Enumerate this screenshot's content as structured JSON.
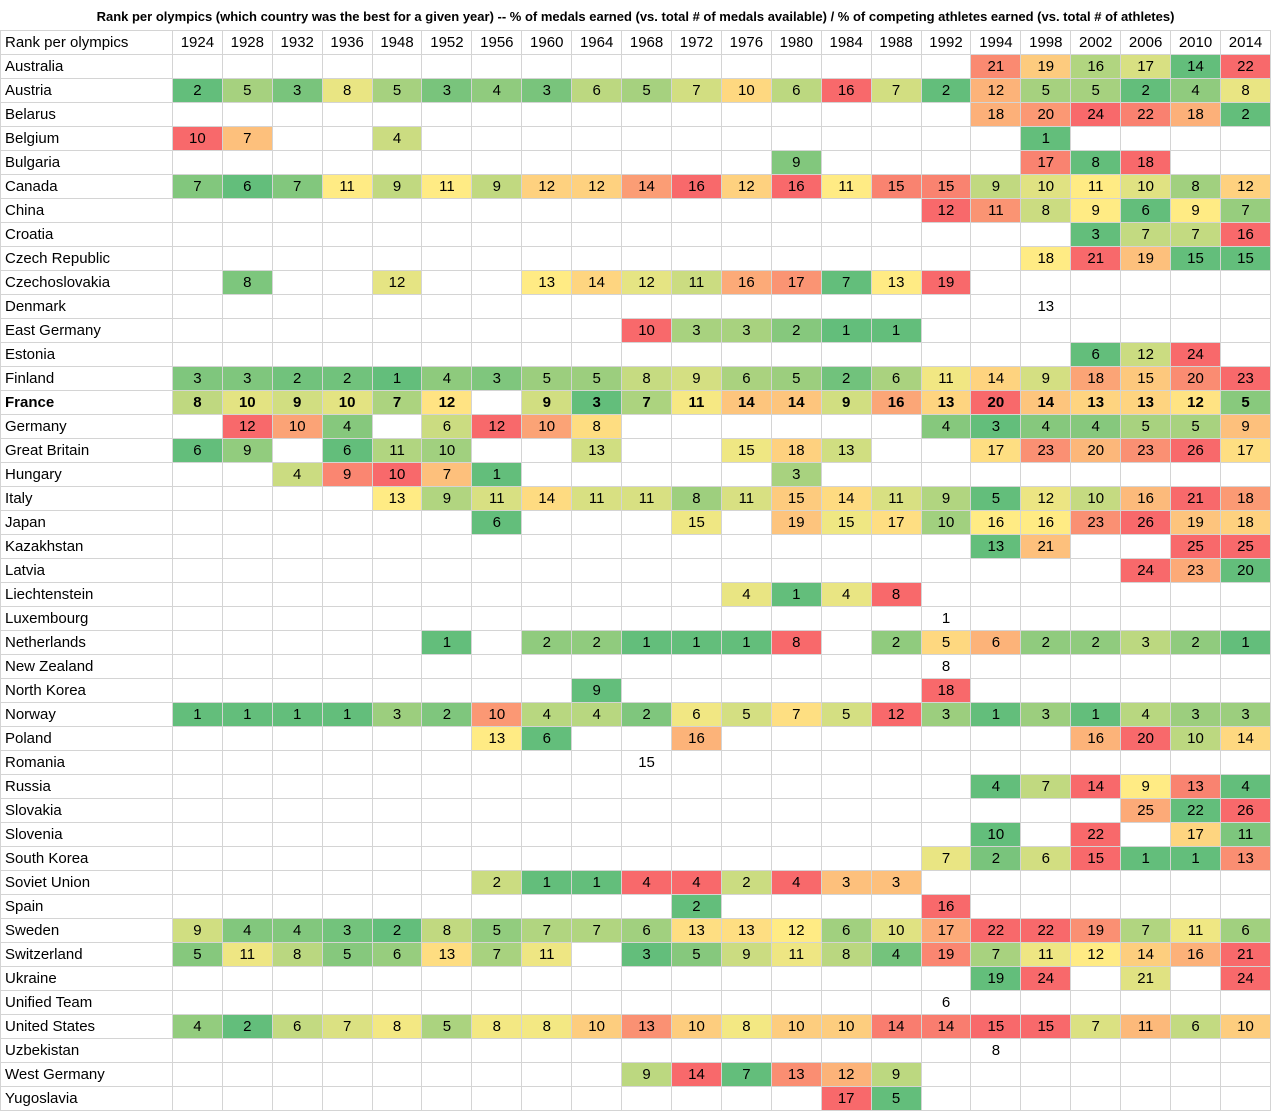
{
  "chart_data": {
    "type": "heatmap",
    "title": "Rank per olympics  (which country was the best for a given year) -- % of medals earned (vs. total # of medals available) / % of competing athletes earned (vs. total # of athletes)",
    "corner_label": "Rank per olympics",
    "bold_row": "France",
    "color_scale": {
      "low": "#63be7b",
      "mid": "#ffeb84",
      "high": "#f8696b"
    },
    "years": [
      "1924",
      "1928",
      "1932",
      "1936",
      "1948",
      "1952",
      "1956",
      "1960",
      "1964",
      "1968",
      "1972",
      "1976",
      "1980",
      "1984",
      "1988",
      "1992",
      "1994",
      "1998",
      "2002",
      "2006",
      "2010",
      "2014"
    ],
    "rows": [
      {
        "country": "Australia",
        "values": [
          null,
          null,
          null,
          null,
          null,
          null,
          null,
          null,
          null,
          null,
          null,
          null,
          null,
          null,
          null,
          null,
          21,
          19,
          16,
          17,
          14,
          22
        ]
      },
      {
        "country": "Austria",
        "values": [
          2,
          5,
          3,
          8,
          5,
          3,
          4,
          3,
          6,
          5,
          7,
          10,
          6,
          16,
          7,
          2,
          12,
          5,
          5,
          2,
          4,
          8
        ]
      },
      {
        "country": "Belarus",
        "values": [
          null,
          null,
          null,
          null,
          null,
          null,
          null,
          null,
          null,
          null,
          null,
          null,
          null,
          null,
          null,
          null,
          18,
          20,
          24,
          22,
          18,
          2
        ]
      },
      {
        "country": "Belgium",
        "values": [
          10,
          7,
          null,
          null,
          4,
          null,
          null,
          null,
          null,
          null,
          null,
          null,
          null,
          null,
          null,
          null,
          null,
          1,
          null,
          null,
          null,
          null
        ]
      },
      {
        "country": "Bulgaria",
        "values": [
          null,
          null,
          null,
          null,
          null,
          null,
          null,
          null,
          null,
          null,
          null,
          null,
          9,
          null,
          null,
          null,
          null,
          17,
          8,
          18,
          null,
          null
        ]
      },
      {
        "country": "Canada",
        "values": [
          7,
          6,
          7,
          11,
          9,
          11,
          9,
          12,
          12,
          14,
          16,
          12,
          16,
          11,
          15,
          15,
          9,
          10,
          11,
          10,
          8,
          12
        ]
      },
      {
        "country": "China",
        "values": [
          null,
          null,
          null,
          null,
          null,
          null,
          null,
          null,
          null,
          null,
          null,
          null,
          null,
          null,
          null,
          12,
          11,
          8,
          9,
          6,
          9,
          7
        ]
      },
      {
        "country": "Croatia",
        "values": [
          null,
          null,
          null,
          null,
          null,
          null,
          null,
          null,
          null,
          null,
          null,
          null,
          null,
          null,
          null,
          null,
          null,
          null,
          3,
          7,
          7,
          16
        ]
      },
      {
        "country": "Czech Republic",
        "values": [
          null,
          null,
          null,
          null,
          null,
          null,
          null,
          null,
          null,
          null,
          null,
          null,
          null,
          null,
          null,
          null,
          null,
          18,
          21,
          19,
          15,
          15
        ]
      },
      {
        "country": "Czechoslovakia",
        "values": [
          null,
          8,
          null,
          null,
          12,
          null,
          null,
          13,
          14,
          12,
          11,
          16,
          17,
          7,
          13,
          19,
          null,
          null,
          null,
          null,
          null,
          null
        ]
      },
      {
        "country": "Denmark",
        "values": [
          null,
          null,
          null,
          null,
          null,
          null,
          null,
          null,
          null,
          null,
          null,
          null,
          null,
          null,
          null,
          null,
          null,
          13,
          null,
          null,
          null,
          null
        ]
      },
      {
        "country": "East Germany",
        "values": [
          null,
          null,
          null,
          null,
          null,
          null,
          null,
          null,
          null,
          10,
          3,
          3,
          2,
          1,
          1,
          null,
          null,
          null,
          null,
          null,
          null,
          null
        ]
      },
      {
        "country": "Estonia",
        "values": [
          null,
          null,
          null,
          null,
          null,
          null,
          null,
          null,
          null,
          null,
          null,
          null,
          null,
          null,
          null,
          null,
          null,
          null,
          6,
          12,
          24,
          null
        ]
      },
      {
        "country": "Finland",
        "values": [
          3,
          3,
          2,
          2,
          1,
          4,
          3,
          5,
          5,
          8,
          9,
          6,
          5,
          2,
          6,
          11,
          14,
          9,
          18,
          15,
          20,
          23
        ]
      },
      {
        "country": "France",
        "values": [
          8,
          10,
          9,
          10,
          7,
          12,
          null,
          9,
          3,
          7,
          11,
          14,
          14,
          9,
          16,
          13,
          20,
          14,
          13,
          13,
          12,
          5
        ]
      },
      {
        "country": "Germany",
        "values": [
          null,
          12,
          10,
          4,
          null,
          6,
          12,
          10,
          8,
          null,
          null,
          null,
          null,
          null,
          null,
          4,
          3,
          4,
          4,
          5,
          5,
          9
        ]
      },
      {
        "country": "Great Britain",
        "values": [
          6,
          9,
          null,
          6,
          11,
          10,
          null,
          null,
          13,
          null,
          null,
          15,
          18,
          13,
          null,
          null,
          17,
          23,
          20,
          23,
          26,
          17
        ]
      },
      {
        "country": "Hungary",
        "values": [
          null,
          null,
          4,
          9,
          10,
          7,
          1,
          null,
          null,
          null,
          null,
          null,
          3,
          null,
          null,
          null,
          null,
          null,
          null,
          null,
          null,
          null
        ]
      },
      {
        "country": "Italy",
        "values": [
          null,
          null,
          null,
          null,
          13,
          9,
          11,
          14,
          11,
          11,
          8,
          11,
          15,
          14,
          11,
          9,
          5,
          12,
          10,
          16,
          21,
          18
        ]
      },
      {
        "country": "Japan",
        "values": [
          null,
          null,
          null,
          null,
          null,
          null,
          6,
          null,
          null,
          null,
          15,
          null,
          19,
          15,
          17,
          10,
          16,
          16,
          23,
          26,
          19,
          18
        ]
      },
      {
        "country": "Kazakhstan",
        "values": [
          null,
          null,
          null,
          null,
          null,
          null,
          null,
          null,
          null,
          null,
          null,
          null,
          null,
          null,
          null,
          null,
          13,
          21,
          null,
          null,
          25,
          25
        ]
      },
      {
        "country": "Latvia",
        "values": [
          null,
          null,
          null,
          null,
          null,
          null,
          null,
          null,
          null,
          null,
          null,
          null,
          null,
          null,
          null,
          null,
          null,
          null,
          null,
          24,
          23,
          20
        ]
      },
      {
        "country": "Liechtenstein",
        "values": [
          null,
          null,
          null,
          null,
          null,
          null,
          null,
          null,
          null,
          null,
          null,
          4,
          1,
          4,
          8,
          null,
          null,
          null,
          null,
          null,
          null,
          null
        ]
      },
      {
        "country": "Luxembourg",
        "values": [
          null,
          null,
          null,
          null,
          null,
          null,
          null,
          null,
          null,
          null,
          null,
          null,
          null,
          null,
          null,
          1,
          null,
          null,
          null,
          null,
          null,
          null
        ]
      },
      {
        "country": "Netherlands",
        "values": [
          null,
          null,
          null,
          null,
          null,
          1,
          null,
          2,
          2,
          1,
          1,
          1,
          8,
          null,
          2,
          5,
          6,
          2,
          2,
          3,
          2,
          1
        ]
      },
      {
        "country": "New Zealand",
        "values": [
          null,
          null,
          null,
          null,
          null,
          null,
          null,
          null,
          null,
          null,
          null,
          null,
          null,
          null,
          null,
          8,
          null,
          null,
          null,
          null,
          null,
          null
        ]
      },
      {
        "country": "North Korea",
        "values": [
          null,
          null,
          null,
          null,
          null,
          null,
          null,
          null,
          9,
          null,
          null,
          null,
          null,
          null,
          null,
          18,
          null,
          null,
          null,
          null,
          null,
          null
        ]
      },
      {
        "country": "Norway",
        "values": [
          1,
          1,
          1,
          1,
          3,
          2,
          10,
          4,
          4,
          2,
          6,
          5,
          7,
          5,
          12,
          3,
          1,
          3,
          1,
          4,
          3,
          3
        ]
      },
      {
        "country": "Poland",
        "values": [
          null,
          null,
          null,
          null,
          null,
          null,
          13,
          6,
          null,
          null,
          16,
          null,
          null,
          null,
          null,
          null,
          null,
          null,
          16,
          20,
          10,
          14
        ]
      },
      {
        "country": "Romania",
        "values": [
          null,
          null,
          null,
          null,
          null,
          null,
          null,
          null,
          null,
          15,
          null,
          null,
          null,
          null,
          null,
          null,
          null,
          null,
          null,
          null,
          null,
          null
        ]
      },
      {
        "country": "Russia",
        "values": [
          null,
          null,
          null,
          null,
          null,
          null,
          null,
          null,
          null,
          null,
          null,
          null,
          null,
          null,
          null,
          null,
          4,
          7,
          14,
          9,
          13,
          4
        ]
      },
      {
        "country": "Slovakia",
        "values": [
          null,
          null,
          null,
          null,
          null,
          null,
          null,
          null,
          null,
          null,
          null,
          null,
          null,
          null,
          null,
          null,
          null,
          null,
          null,
          25,
          22,
          26
        ]
      },
      {
        "country": "Slovenia",
        "values": [
          null,
          null,
          null,
          null,
          null,
          null,
          null,
          null,
          null,
          null,
          null,
          null,
          null,
          null,
          null,
          null,
          10,
          null,
          22,
          null,
          17,
          11
        ]
      },
      {
        "country": "South Korea",
        "values": [
          null,
          null,
          null,
          null,
          null,
          null,
          null,
          null,
          null,
          null,
          null,
          null,
          null,
          null,
          null,
          7,
          2,
          6,
          15,
          1,
          1,
          13
        ]
      },
      {
        "country": "Soviet Union",
        "values": [
          null,
          null,
          null,
          null,
          null,
          null,
          2,
          1,
          1,
          4,
          4,
          2,
          4,
          3,
          3,
          null,
          null,
          null,
          null,
          null,
          null,
          null
        ]
      },
      {
        "country": "Spain",
        "values": [
          null,
          null,
          null,
          null,
          null,
          null,
          null,
          null,
          null,
          null,
          2,
          null,
          null,
          null,
          null,
          16,
          null,
          null,
          null,
          null,
          null,
          null
        ]
      },
      {
        "country": "Sweden",
        "values": [
          9,
          4,
          4,
          3,
          2,
          8,
          5,
          7,
          7,
          6,
          13,
          13,
          12,
          6,
          10,
          17,
          22,
          22,
          19,
          7,
          11,
          6
        ]
      },
      {
        "country": "Switzerland",
        "values": [
          5,
          11,
          8,
          5,
          6,
          13,
          7,
          11,
          null,
          3,
          5,
          9,
          11,
          8,
          4,
          19,
          7,
          11,
          12,
          14,
          16,
          21
        ]
      },
      {
        "country": "Ukraine",
        "values": [
          null,
          null,
          null,
          null,
          null,
          null,
          null,
          null,
          null,
          null,
          null,
          null,
          null,
          null,
          null,
          null,
          19,
          24,
          null,
          21,
          null,
          24
        ]
      },
      {
        "country": "Unified Team",
        "values": [
          null,
          null,
          null,
          null,
          null,
          null,
          null,
          null,
          null,
          null,
          null,
          null,
          null,
          null,
          null,
          6,
          null,
          null,
          null,
          null,
          null,
          null
        ]
      },
      {
        "country": "United States",
        "values": [
          4,
          2,
          6,
          7,
          8,
          5,
          8,
          8,
          10,
          13,
          10,
          8,
          10,
          10,
          14,
          14,
          15,
          15,
          7,
          11,
          6,
          10
        ]
      },
      {
        "country": "Uzbekistan",
        "values": [
          null,
          null,
          null,
          null,
          null,
          null,
          null,
          null,
          null,
          null,
          null,
          null,
          null,
          null,
          null,
          null,
          8,
          null,
          null,
          null,
          null,
          null
        ]
      },
      {
        "country": "West Germany",
        "values": [
          null,
          null,
          null,
          null,
          null,
          null,
          null,
          null,
          null,
          9,
          14,
          7,
          13,
          12,
          9,
          null,
          null,
          null,
          null,
          null,
          null,
          null
        ]
      },
      {
        "country": "Yugoslavia",
        "values": [
          null,
          null,
          null,
          null,
          null,
          null,
          null,
          null,
          null,
          null,
          null,
          null,
          null,
          17,
          5,
          null,
          null,
          null,
          null,
          null,
          null,
          null
        ]
      }
    ]
  }
}
